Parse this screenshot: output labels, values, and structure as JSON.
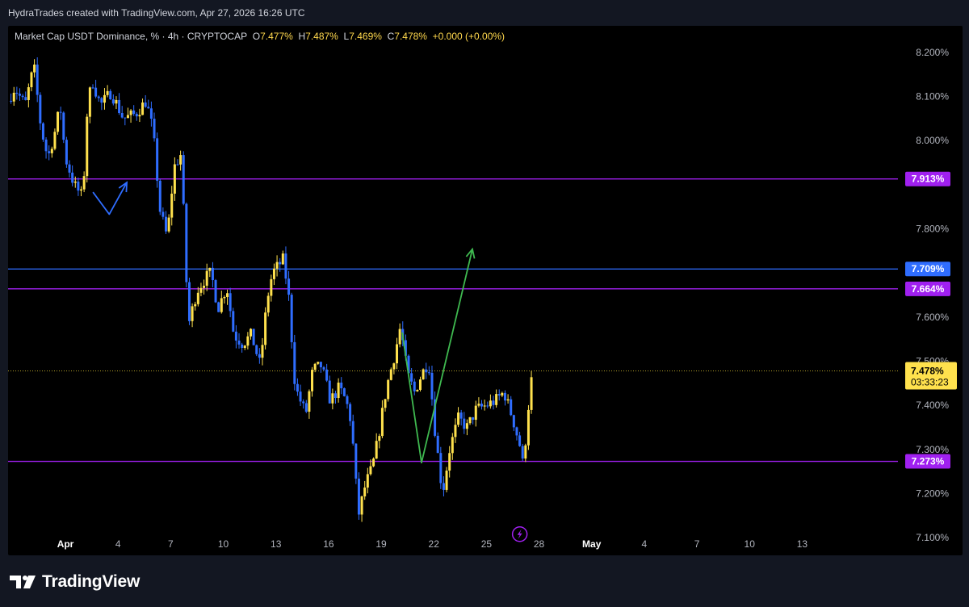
{
  "header": {
    "credit": "HydraTrades created with TradingView.com, Apr 27, 2026 16:26 UTC"
  },
  "legend": {
    "symbol": "Market Cap USDT Dominance, % · 4h · CRYPTOCAP",
    "o_label": "O",
    "o": "7.477%",
    "h_label": "H",
    "h": "7.487%",
    "l_label": "L",
    "l": "7.469%",
    "c_label": "C",
    "c": "7.478%",
    "change": "+0.000 (+0.00%)"
  },
  "footer": {
    "brand": "TradingView"
  },
  "colors": {
    "panel_bg": "#000000",
    "up": "#ffe14d",
    "down": "#2f6dff",
    "purple": "#a020f0",
    "blue_line": "#2f6dff",
    "green": "#3fb950",
    "axis_text": "#b2b5be"
  },
  "chart_data": {
    "type": "candlestick",
    "title": "",
    "xlabel": "",
    "ylabel": "",
    "ylim": [
      7.06,
      8.26
    ],
    "y_ticks": [
      "8.200%",
      "8.100%",
      "8.000%",
      "7.800%",
      "7.600%",
      "7.500%",
      "7.400%",
      "7.300%",
      "7.200%",
      "7.100%"
    ],
    "y_tick_values": [
      8.2,
      8.1,
      8.0,
      7.8,
      7.6,
      7.5,
      7.4,
      7.3,
      7.2,
      7.1
    ],
    "x_ticks": [
      "Apr",
      "4",
      "7",
      "10",
      "13",
      "16",
      "19",
      "22",
      "25",
      "28",
      "May",
      "4",
      "7",
      "10",
      "13"
    ],
    "x_tick_days": [
      1,
      4,
      7,
      10,
      13,
      16,
      19,
      22,
      25,
      28,
      31,
      34,
      37,
      40,
      43
    ],
    "x_tick_bold": [
      true,
      false,
      false,
      false,
      false,
      false,
      false,
      false,
      false,
      false,
      true,
      false,
      false,
      false,
      false
    ],
    "day_range": [
      -2.27,
      48.46
    ],
    "anchors": [
      [
        -2.27,
        8.09
      ],
      [
        -1.9,
        8.12
      ],
      [
        -1.3,
        8.08
      ],
      [
        -0.8,
        8.17
      ],
      [
        -0.4,
        8.03
      ],
      [
        0.0,
        7.96
      ],
      [
        0.4,
        8.02
      ],
      [
        0.7,
        8.08
      ],
      [
        1.0,
        7.96
      ],
      [
        1.5,
        7.9
      ],
      [
        2.0,
        7.87
      ],
      [
        2.2,
        8.05
      ],
      [
        2.5,
        8.14
      ],
      [
        3.0,
        8.08
      ],
      [
        3.6,
        8.11
      ],
      [
        4.3,
        8.05
      ],
      [
        5.0,
        8.06
      ],
      [
        5.6,
        8.09
      ],
      [
        6.0,
        8.02
      ],
      [
        6.4,
        7.84
      ],
      [
        6.8,
        7.78
      ],
      [
        7.2,
        7.94
      ],
      [
        7.6,
        7.97
      ],
      [
        8.0,
        7.58
      ],
      [
        8.5,
        7.66
      ],
      [
        9.0,
        7.69
      ],
      [
        9.3,
        7.7
      ],
      [
        9.7,
        7.62
      ],
      [
        10.2,
        7.67
      ],
      [
        10.6,
        7.56
      ],
      [
        11.1,
        7.54
      ],
      [
        11.6,
        7.56
      ],
      [
        12.1,
        7.49
      ],
      [
        12.5,
        7.64
      ],
      [
        12.8,
        7.7
      ],
      [
        13.4,
        7.73
      ],
      [
        13.7,
        7.66
      ],
      [
        14.1,
        7.44
      ],
      [
        14.7,
        7.38
      ],
      [
        15.1,
        7.48
      ],
      [
        15.6,
        7.49
      ],
      [
        16.1,
        7.41
      ],
      [
        16.6,
        7.44
      ],
      [
        17.0,
        7.41
      ],
      [
        17.3,
        7.36
      ],
      [
        17.7,
        7.15
      ],
      [
        18.1,
        7.22
      ],
      [
        18.5,
        7.26
      ],
      [
        18.8,
        7.32
      ],
      [
        19.3,
        7.44
      ],
      [
        19.8,
        7.52
      ],
      [
        20.1,
        7.58
      ],
      [
        20.5,
        7.47
      ],
      [
        20.9,
        7.43
      ],
      [
        21.3,
        7.47
      ],
      [
        21.7,
        7.5
      ],
      [
        22.1,
        7.33
      ],
      [
        22.5,
        7.2
      ],
      [
        22.9,
        7.3
      ],
      [
        23.4,
        7.37
      ],
      [
        23.9,
        7.35
      ],
      [
        24.4,
        7.39
      ],
      [
        25.0,
        7.4
      ],
      [
        25.5,
        7.41
      ],
      [
        26.0,
        7.43
      ],
      [
        26.5,
        7.37
      ],
      [
        26.9,
        7.31
      ],
      [
        27.1,
        7.26
      ],
      [
        27.4,
        7.4
      ],
      [
        27.6,
        7.478
      ]
    ],
    "horizontal_levels": [
      {
        "value": 7.913,
        "label": "7.913%",
        "color": "#a020f0"
      },
      {
        "value": 7.709,
        "label": "7.709%",
        "color": "#2f6dff"
      },
      {
        "value": 7.664,
        "label": "7.664%",
        "color": "#a020f0"
      },
      {
        "value": 7.273,
        "label": "7.273%",
        "color": "#a020f0"
      }
    ],
    "current": {
      "value": 7.478,
      "label": "7.478%",
      "countdown": "03:33:23"
    },
    "annotations": [
      {
        "type": "arrow-path",
        "color": "#2f6dff",
        "points": [
          [
            2.57,
            7.883
          ],
          [
            3.5,
            7.833
          ],
          [
            4.5,
            7.905
          ]
        ]
      },
      {
        "type": "arrow-path",
        "color": "#3fb950",
        "points": [
          [
            20.2,
            7.565
          ],
          [
            21.3,
            7.27
          ],
          [
            24.2,
            7.754
          ]
        ]
      }
    ],
    "event_marker": {
      "day": 26.9,
      "value": 7.108,
      "icon": "lightning-icon",
      "color": "#a020f0"
    }
  }
}
